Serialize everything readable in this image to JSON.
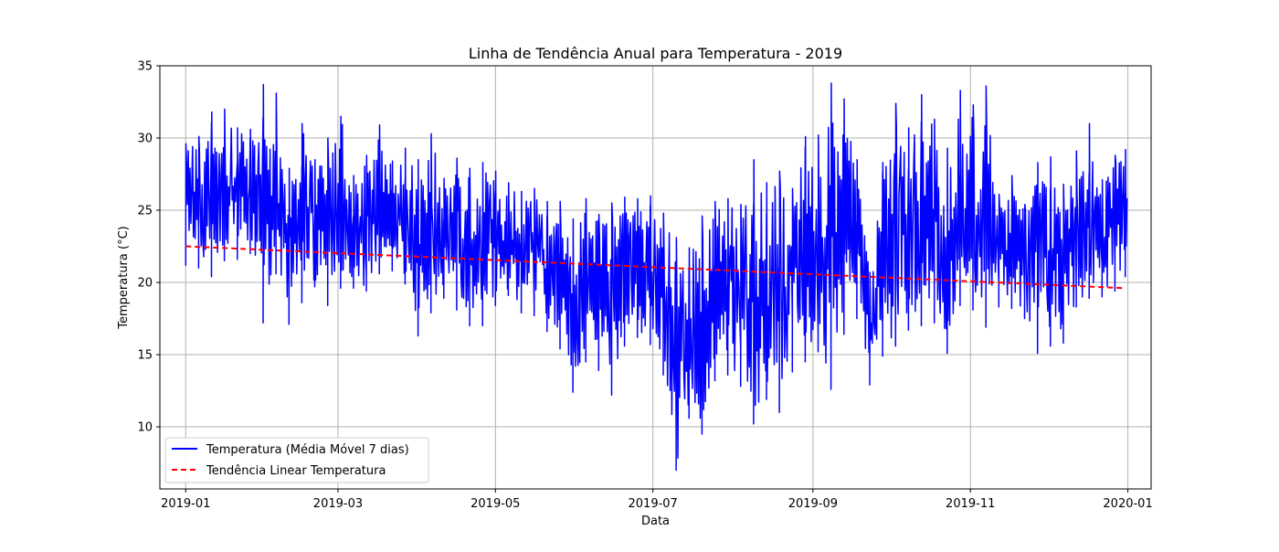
{
  "chart_data": {
    "type": "line",
    "title": "Linha de Tendência Anual para Temperatura - 2019",
    "xlabel": "Data",
    "ylabel": "Temperatura (°C)",
    "x_range": [
      "2018-12-22",
      "2020-01-10"
    ],
    "ylim": [
      5.7,
      35.0
    ],
    "x_ticks": [
      "2019-01",
      "2019-03",
      "2019-05",
      "2019-07",
      "2019-09",
      "2019-11",
      "2020-01"
    ],
    "y_ticks": [
      10,
      15,
      20,
      25,
      30,
      35
    ],
    "grid": true,
    "legend_position": "lower left",
    "series": [
      {
        "name": "Temperatura (Média Móvel 7 dias)",
        "style": "solid",
        "color": "#0000ff",
        "x": [
          "2019-01-01",
          "2019-01-06",
          "2019-01-11",
          "2019-01-16",
          "2019-01-21",
          "2019-01-26",
          "2019-01-31",
          "2019-02-05",
          "2019-02-10",
          "2019-02-15",
          "2019-02-20",
          "2019-02-25",
          "2019-03-02",
          "2019-03-07",
          "2019-03-12",
          "2019-03-17",
          "2019-03-22",
          "2019-03-27",
          "2019-04-01",
          "2019-04-06",
          "2019-04-11",
          "2019-04-16",
          "2019-04-21",
          "2019-04-26",
          "2019-05-01",
          "2019-05-06",
          "2019-05-11",
          "2019-05-16",
          "2019-05-21",
          "2019-05-26",
          "2019-05-31",
          "2019-06-05",
          "2019-06-10",
          "2019-06-15",
          "2019-06-20",
          "2019-06-25",
          "2019-06-30",
          "2019-07-05",
          "2019-07-10",
          "2019-07-15",
          "2019-07-20",
          "2019-07-25",
          "2019-07-30",
          "2019-08-04",
          "2019-08-09",
          "2019-08-14",
          "2019-08-19",
          "2019-08-24",
          "2019-08-29",
          "2019-09-03",
          "2019-09-08",
          "2019-09-13",
          "2019-09-18",
          "2019-09-23",
          "2019-09-28",
          "2019-10-03",
          "2019-10-08",
          "2019-10-13",
          "2019-10-18",
          "2019-10-23",
          "2019-10-28",
          "2019-11-02",
          "2019-11-07",
          "2019-11-12",
          "2019-11-17",
          "2019-11-22",
          "2019-11-27",
          "2019-12-02",
          "2019-12-07",
          "2019-12-12",
          "2019-12-17",
          "2019-12-22",
          "2019-12-27",
          "2019-12-31"
        ],
        "low": [
          21.2,
          21.0,
          20.4,
          21.5,
          21.6,
          22.0,
          17.2,
          20.6,
          17.1,
          18.6,
          19.7,
          18.4,
          19.6,
          19.6,
          19.4,
          20.6,
          20.8,
          19.9,
          16.3,
          17.9,
          18.9,
          18.1,
          17.0,
          17.0,
          18.4,
          19.1,
          17.9,
          17.7,
          16.6,
          15.4,
          12.4,
          14.5,
          13.9,
          12.2,
          15.6,
          16.2,
          15.7,
          13.6,
          7.0,
          10.6,
          9.5,
          13.2,
          13.6,
          12.8,
          10.2,
          11.9,
          11.0,
          13.8,
          14.5,
          15.2,
          12.6,
          16.4,
          17.5,
          12.9,
          14.9,
          15.6,
          16.7,
          17.0,
          17.2,
          15.1,
          18.4,
          18.1,
          16.9,
          18.3,
          18.2,
          17.5,
          15.1,
          15.6,
          15.8,
          18.3,
          18.9,
          19.0,
          19.4,
          20.4
        ],
        "high": [
          29.6,
          30.1,
          31.8,
          32.0,
          30.7,
          30.6,
          33.7,
          33.1,
          27.9,
          31.0,
          28.5,
          30.0,
          31.5,
          27.4,
          28.8,
          30.9,
          28.4,
          29.3,
          28.5,
          30.3,
          27.2,
          28.6,
          27.9,
          28.3,
          27.7,
          26.9,
          26.3,
          26.5,
          25.6,
          25.6,
          24.4,
          25.8,
          24.7,
          25.5,
          25.9,
          25.8,
          26.0,
          24.8,
          23.1,
          22.4,
          24.6,
          25.6,
          25.8,
          25.4,
          28.5,
          26.9,
          27.7,
          26.5,
          30.1,
          30.2,
          33.8,
          32.7,
          28.5,
          20.7,
          28.3,
          32.4,
          30.7,
          33.0,
          31.3,
          29.3,
          33.3,
          32.3,
          33.6,
          26.1,
          27.4,
          25.4,
          28.3,
          28.7,
          26.8,
          29.1,
          31.0,
          27.1,
          28.8,
          29.2
        ]
      },
      {
        "name": "Tendência Linear Temperatura",
        "style": "dashed",
        "color": "#ff0000",
        "x": [
          "2019-01-01",
          "2019-12-31"
        ],
        "y": [
          22.5,
          19.6
        ]
      }
    ]
  }
}
